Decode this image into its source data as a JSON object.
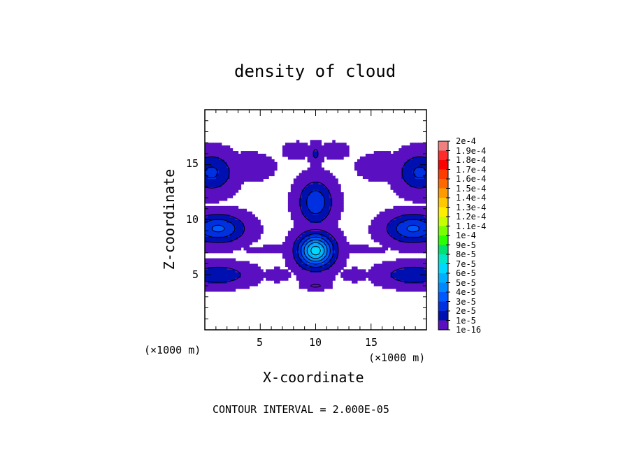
{
  "chart_data": {
    "type": "heatmap",
    "title": "density of cloud",
    "xlabel": "X-coordinate",
    "ylabel": "Z-coordinate",
    "x_unit": "(×1000 m)",
    "y_unit": "(×1000 m)",
    "footer": "CONTOUR INTERVAL = 2.000E-05",
    "xlim": [
      0,
      20
    ],
    "ylim": [
      0,
      20
    ],
    "x_ticks": [
      5,
      10,
      15
    ],
    "y_ticks": [
      5,
      10,
      15
    ],
    "colorbar": {
      "labels": [
        "2e-4",
        "1.9e-4",
        "1.8e-4",
        "1.7e-4",
        "1.6e-4",
        "1.5e-4",
        "1.4e-4",
        "1.3e-4",
        "1.2e-4",
        "1.1e-4",
        "1e-4",
        "9e-5",
        "8e-5",
        "7e-5",
        "6e-5",
        "5e-5",
        "4e-5",
        "3e-5",
        "2e-5",
        "1e-5",
        "1e-16"
      ],
      "colors": [
        "#f08080",
        "#ff2a2a",
        "#ff0000",
        "#ff3c00",
        "#ff6a00",
        "#ff9a00",
        "#ffc800",
        "#ffee00",
        "#c8ff00",
        "#7aff00",
        "#2aff00",
        "#00e070",
        "#00e6c8",
        "#00d8ff",
        "#00b0ff",
        "#0088ff",
        "#0058ff",
        "#0030e0",
        "#0010b0",
        "#5a10c0"
      ]
    },
    "blobs": [
      {
        "x": 10.0,
        "z": 7.2,
        "rx": 1.5,
        "rz": 1.4,
        "peak": 6.5e-05
      },
      {
        "x": 10.0,
        "z": 11.6,
        "rx": 1.4,
        "rz": 1.8,
        "peak": 2.8e-05
      },
      {
        "x": 1.2,
        "z": 9.2,
        "rx": 2.2,
        "rz": 1.2,
        "peak": 3.2e-05
      },
      {
        "x": 18.8,
        "z": 9.2,
        "rx": 2.2,
        "rz": 1.2,
        "peak": 3.2e-05
      },
      {
        "x": 0.6,
        "z": 14.3,
        "rx": 1.8,
        "rz": 1.6,
        "peak": 2.2e-05
      },
      {
        "x": 19.4,
        "z": 14.3,
        "rx": 1.8,
        "rz": 1.6,
        "peak": 2.2e-05
      },
      {
        "x": 1.2,
        "z": 5.0,
        "rx": 2.6,
        "rz": 0.9,
        "peak": 1.8e-05
      },
      {
        "x": 18.8,
        "z": 5.0,
        "rx": 2.6,
        "rz": 0.9,
        "peak": 1.8e-05
      },
      {
        "x": 10.0,
        "z": 4.0,
        "rx": 1.0,
        "rz": 0.3,
        "peak": 1.2e-05
      },
      {
        "x": 10.0,
        "z": 16.0,
        "rx": 0.5,
        "rz": 0.9,
        "peak": 1.2e-05
      },
      {
        "x": 8.3,
        "z": 16.3,
        "rx": 1.0,
        "rz": 0.6,
        "peak": 8e-06
      },
      {
        "x": 11.7,
        "z": 16.3,
        "rx": 1.0,
        "rz": 0.6,
        "peak": 8e-06
      },
      {
        "x": 7.0,
        "z": 7.3,
        "rx": 2.8,
        "rz": 0.3,
        "peak": 6e-06
      },
      {
        "x": 13.0,
        "z": 7.3,
        "rx": 2.8,
        "rz": 0.3,
        "peak": 6e-06
      },
      {
        "x": 6.5,
        "z": 5.0,
        "rx": 1.0,
        "rz": 0.5,
        "peak": 6e-06
      },
      {
        "x": 13.5,
        "z": 5.0,
        "rx": 1.0,
        "rz": 0.5,
        "peak": 6e-06
      },
      {
        "x": 4.0,
        "z": 14.8,
        "rx": 1.8,
        "rz": 1.0,
        "peak": 8e-06
      },
      {
        "x": 16.0,
        "z": 14.8,
        "rx": 1.8,
        "rz": 1.0,
        "peak": 8e-06
      },
      {
        "x": 8.8,
        "z": 4.8,
        "rx": 0.5,
        "rz": 0.4,
        "peak": 6e-06
      },
      {
        "x": 11.2,
        "z": 4.8,
        "rx": 0.5,
        "rz": 0.4,
        "peak": 6e-06
      }
    ]
  }
}
